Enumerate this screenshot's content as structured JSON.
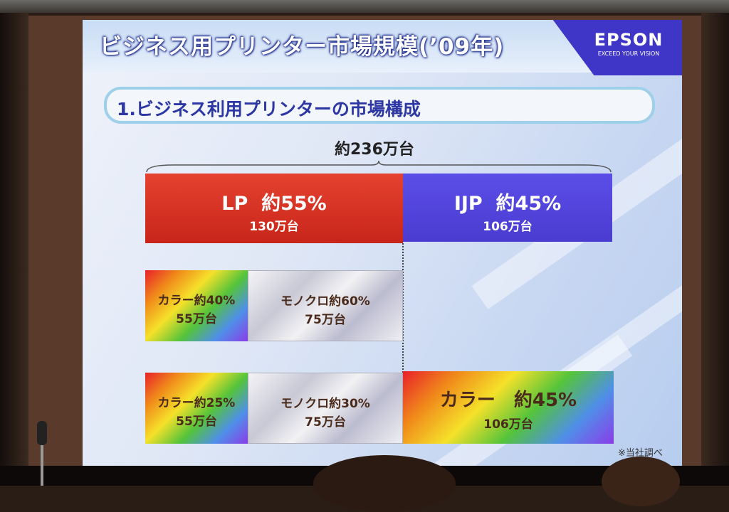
{
  "slide": {
    "title": "ビジネス用プリンター市場規模(’09年)",
    "brand": {
      "name": "EPSON",
      "tagline": "EXCEED YOUR VISION"
    },
    "section_label": "1.ビジネス利用プリンターの市場構成",
    "total_label": "約236万台",
    "segments": {
      "lp": {
        "name": "LP",
        "share": "約55%",
        "units": "130万台"
      },
      "ijp": {
        "name": "IJP",
        "share": "約45%",
        "units": "106万台"
      }
    },
    "rows": [
      {
        "color": {
          "label": "カラー約40%",
          "units": "55万台"
        },
        "mono": {
          "label": "モノクロ約60%",
          "units": "75万台"
        }
      },
      {
        "color": {
          "label": "カラー約25%",
          "units": "55万台"
        },
        "mono": {
          "label": "モノクロ約30%",
          "units": "75万台"
        },
        "ijp_color": {
          "label": "カラー　約45%",
          "units": "106万台"
        }
      }
    ],
    "footnote": "※当社調べ"
  },
  "colors": {
    "lp": "#d9321f",
    "ijp": "#5040da",
    "title_outline": "#1a2a8a",
    "section_text": "#2c37a3",
    "brand_panel": "#3f36c8"
  }
}
